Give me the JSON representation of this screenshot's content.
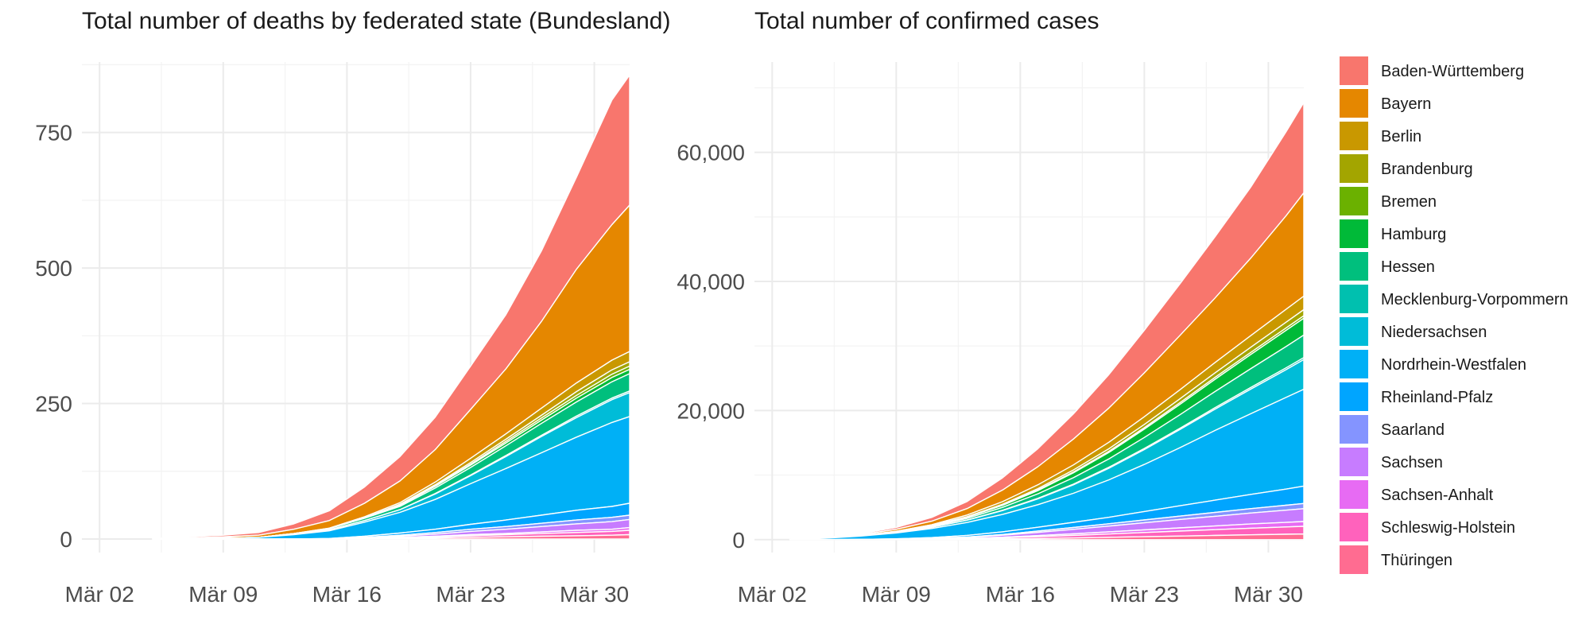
{
  "chart_data": [
    {
      "type": "area",
      "title": "Total number of deaths by federated state (Bundesland)",
      "xlabel": "",
      "ylabel": "",
      "x_start": "2020-03-01",
      "x_end": "2020-04-01",
      "x_ticks": [
        "Mär 02",
        "Mär 09",
        "Mär 16",
        "Mär 23",
        "Mär 30"
      ],
      "x_tick_dates": [
        "2020-03-02",
        "2020-03-09",
        "2020-03-16",
        "2020-03-23",
        "2020-03-30"
      ],
      "ylim": [
        -25,
        880
      ],
      "y_ticks": [
        0,
        250,
        500,
        750
      ],
      "y_tick_labels": [
        "0",
        "250",
        "500",
        "750"
      ],
      "stacked": true,
      "grid": true,
      "dates": [
        "2020-03-05",
        "2020-03-07",
        "2020-03-09",
        "2020-03-11",
        "2020-03-13",
        "2020-03-15",
        "2020-03-17",
        "2020-03-19",
        "2020-03-21",
        "2020-03-23",
        "2020-03-25",
        "2020-03-27",
        "2020-03-29",
        "2020-03-31",
        "2020-04-01"
      ],
      "series": [
        {
          "name": "Baden-Württemberg",
          "values": [
            1,
            2,
            3,
            5,
            10,
            18,
            30,
            45,
            60,
            80,
            100,
            130,
            170,
            230,
            240
          ]
        },
        {
          "name": "Bayern",
          "values": [
            0,
            1,
            2,
            4,
            8,
            14,
            25,
            40,
            60,
            90,
            120,
            160,
            210,
            250,
            270
          ]
        },
        {
          "name": "Berlin",
          "values": [
            0,
            0,
            0,
            0,
            0,
            1,
            2,
            3,
            5,
            8,
            10,
            13,
            16,
            18,
            19
          ]
        },
        {
          "name": "Brandenburg",
          "values": [
            0,
            0,
            0,
            0,
            0,
            0,
            0,
            1,
            2,
            3,
            4,
            5,
            7,
            8,
            8
          ]
        },
        {
          "name": "Bremen",
          "values": [
            0,
            0,
            0,
            0,
            0,
            0,
            0,
            1,
            1,
            2,
            3,
            4,
            5,
            6,
            6
          ]
        },
        {
          "name": "Hamburg",
          "values": [
            0,
            0,
            0,
            0,
            0,
            0,
            1,
            2,
            3,
            4,
            5,
            6,
            7,
            8,
            8
          ]
        },
        {
          "name": "Hessen",
          "values": [
            0,
            0,
            0,
            0,
            1,
            2,
            4,
            6,
            10,
            14,
            18,
            22,
            26,
            30,
            32
          ]
        },
        {
          "name": "Mecklenburg-Vorpommern",
          "values": [
            0,
            0,
            0,
            0,
            0,
            0,
            0,
            0,
            1,
            1,
            2,
            2,
            3,
            3,
            3
          ]
        },
        {
          "name": "Niedersachsen",
          "values": [
            0,
            0,
            0,
            0,
            1,
            2,
            3,
            5,
            10,
            15,
            22,
            30,
            36,
            42,
            44
          ]
        },
        {
          "name": "Nordrhein-Westfalen",
          "values": [
            0,
            1,
            2,
            3,
            8,
            14,
            26,
            38,
            55,
            75,
            95,
            115,
            135,
            155,
            160
          ]
        },
        {
          "name": "Rheinland-Pfalz",
          "values": [
            0,
            0,
            0,
            0,
            0,
            1,
            2,
            4,
            6,
            9,
            12,
            15,
            18,
            20,
            22
          ]
        },
        {
          "name": "Saarland",
          "values": [
            0,
            0,
            0,
            0,
            0,
            0,
            1,
            2,
            3,
            4,
            5,
            6,
            7,
            8,
            8
          ]
        },
        {
          "name": "Sachsen",
          "values": [
            0,
            0,
            0,
            0,
            0,
            0,
            1,
            2,
            4,
            6,
            8,
            10,
            12,
            14,
            15
          ]
        },
        {
          "name": "Sachsen-Anhalt",
          "values": [
            0,
            0,
            0,
            0,
            0,
            0,
            0,
            1,
            1,
            2,
            2,
            3,
            4,
            4,
            5
          ]
        },
        {
          "name": "Schleswig-Holstein",
          "values": [
            0,
            0,
            0,
            0,
            0,
            0,
            1,
            1,
            2,
            3,
            4,
            5,
            6,
            7,
            8
          ]
        },
        {
          "name": "Thüringen",
          "values": [
            0,
            0,
            0,
            0,
            0,
            0,
            0,
            1,
            2,
            3,
            4,
            5,
            6,
            7,
            8
          ]
        }
      ]
    },
    {
      "type": "area",
      "title": "Total number of confirmed cases",
      "xlabel": "",
      "ylabel": "",
      "x_start": "2020-03-01",
      "x_end": "2020-04-01",
      "x_ticks": [
        "Mär 02",
        "Mär 09",
        "Mär 16",
        "Mär 23",
        "Mär 30"
      ],
      "x_tick_dates": [
        "2020-03-02",
        "2020-03-09",
        "2020-03-16",
        "2020-03-23",
        "2020-03-30"
      ],
      "ylim": [
        -2000,
        74000
      ],
      "y_ticks": [
        0,
        20000,
        40000,
        60000
      ],
      "y_tick_labels": [
        "0",
        "20,000",
        "40,000",
        "60,000"
      ],
      "stacked": true,
      "grid": true,
      "dates": [
        "2020-03-03",
        "2020-03-05",
        "2020-03-07",
        "2020-03-09",
        "2020-03-11",
        "2020-03-13",
        "2020-03-15",
        "2020-03-17",
        "2020-03-19",
        "2020-03-21",
        "2020-03-23",
        "2020-03-25",
        "2020-03-27",
        "2020-03-29",
        "2020-03-31",
        "2020-04-01"
      ],
      "series": [
        {
          "name": "Baden-Württemberg",
          "values": [
            10,
            50,
            150,
            300,
            600,
            1100,
            1900,
            2800,
            3900,
            5200,
            6600,
            8000,
            9500,
            11000,
            13000,
            14000
          ]
        },
        {
          "name": "Bayern",
          "values": [
            10,
            40,
            120,
            300,
            550,
            1000,
            1800,
            2800,
            4000,
            5300,
            6800,
            8400,
            10000,
            12000,
            14500,
            16000
          ]
        },
        {
          "name": "Berlin",
          "values": [
            0,
            5,
            20,
            50,
            120,
            250,
            400,
            600,
            800,
            1000,
            1200,
            1400,
            1600,
            1800,
            2000,
            2100
          ]
        },
        {
          "name": "Brandenburg",
          "values": [
            0,
            2,
            5,
            15,
            30,
            60,
            120,
            200,
            300,
            400,
            500,
            600,
            700,
            800,
            900,
            950
          ]
        },
        {
          "name": "Bremen",
          "values": [
            0,
            1,
            3,
            8,
            15,
            30,
            60,
            100,
            140,
            180,
            220,
            260,
            300,
            330,
            360,
            380
          ]
        },
        {
          "name": "Hamburg",
          "values": [
            0,
            5,
            15,
            40,
            90,
            180,
            300,
            500,
            750,
            1000,
            1300,
            1600,
            1900,
            2200,
            2500,
            2600
          ]
        },
        {
          "name": "Hessen",
          "values": [
            0,
            8,
            25,
            60,
            130,
            250,
            450,
            700,
            1000,
            1300,
            1700,
            2100,
            2500,
            2900,
            3300,
            3500
          ]
        },
        {
          "name": "Mecklenburg-Vorpommern",
          "values": [
            0,
            1,
            3,
            8,
            15,
            30,
            50,
            80,
            110,
            140,
            170,
            200,
            230,
            260,
            290,
            300
          ]
        },
        {
          "name": "Niedersachsen",
          "values": [
            0,
            10,
            30,
            80,
            180,
            350,
            600,
            900,
            1300,
            1800,
            2300,
            2800,
            3300,
            3800,
            4300,
            4600
          ]
        },
        {
          "name": "Nordrhein-Westfalen",
          "values": [
            20,
            200,
            500,
            900,
            1400,
            2000,
            2700,
            3500,
            4500,
            5800,
            7300,
            9000,
            10800,
            12500,
            14200,
            15000
          ]
        },
        {
          "name": "Rheinland-Pfalz",
          "values": [
            0,
            5,
            20,
            50,
            120,
            250,
            400,
            600,
            800,
            1000,
            1300,
            1600,
            1900,
            2200,
            2500,
            2700
          ]
        },
        {
          "name": "Saarland",
          "values": [
            0,
            1,
            5,
            15,
            30,
            60,
            120,
            200,
            280,
            360,
            440,
            520,
            600,
            680,
            760,
            800
          ]
        },
        {
          "name": "Sachsen",
          "values": [
            0,
            3,
            10,
            30,
            70,
            150,
            300,
            500,
            700,
            900,
            1100,
            1300,
            1500,
            1700,
            1900,
            2000
          ]
        },
        {
          "name": "Sachsen-Anhalt",
          "values": [
            0,
            1,
            3,
            10,
            25,
            50,
            100,
            170,
            250,
            330,
            410,
            490,
            570,
            650,
            700,
            730
          ]
        },
        {
          "name": "Schleswig-Holstein",
          "values": [
            0,
            2,
            8,
            20,
            50,
            100,
            180,
            280,
            400,
            520,
            650,
            780,
            900,
            1020,
            1140,
            1200
          ]
        },
        {
          "name": "Thüringen",
          "values": [
            0,
            1,
            3,
            10,
            25,
            50,
            100,
            170,
            250,
            350,
            450,
            550,
            650,
            750,
            830,
            870
          ]
        }
      ]
    }
  ],
  "legend": {
    "placement": "right",
    "items": [
      {
        "name": "Baden-Württemberg",
        "color": "#F8766D"
      },
      {
        "name": "Bayern",
        "color": "#E58700"
      },
      {
        "name": "Berlin",
        "color": "#C99800"
      },
      {
        "name": "Brandenburg",
        "color": "#A3A500"
      },
      {
        "name": "Bremen",
        "color": "#6BB100"
      },
      {
        "name": "Hamburg",
        "color": "#00BA38"
      },
      {
        "name": "Hessen",
        "color": "#00BF7D"
      },
      {
        "name": "Mecklenburg-Vorpommern",
        "color": "#00C0AF"
      },
      {
        "name": "Niedersachsen",
        "color": "#00BCD8"
      },
      {
        "name": "Nordrhein-Westfalen",
        "color": "#00B0F6"
      },
      {
        "name": "Rheinland-Pfalz",
        "color": "#00A5FF"
      },
      {
        "name": "Saarland",
        "color": "#8494FF"
      },
      {
        "name": "Sachsen",
        "color": "#C77CFF"
      },
      {
        "name": "Sachsen-Anhalt",
        "color": "#E76BF3"
      },
      {
        "name": "Schleswig-Holstein",
        "color": "#FF62BC"
      },
      {
        "name": "Thüringen",
        "color": "#FF6C91"
      }
    ]
  }
}
